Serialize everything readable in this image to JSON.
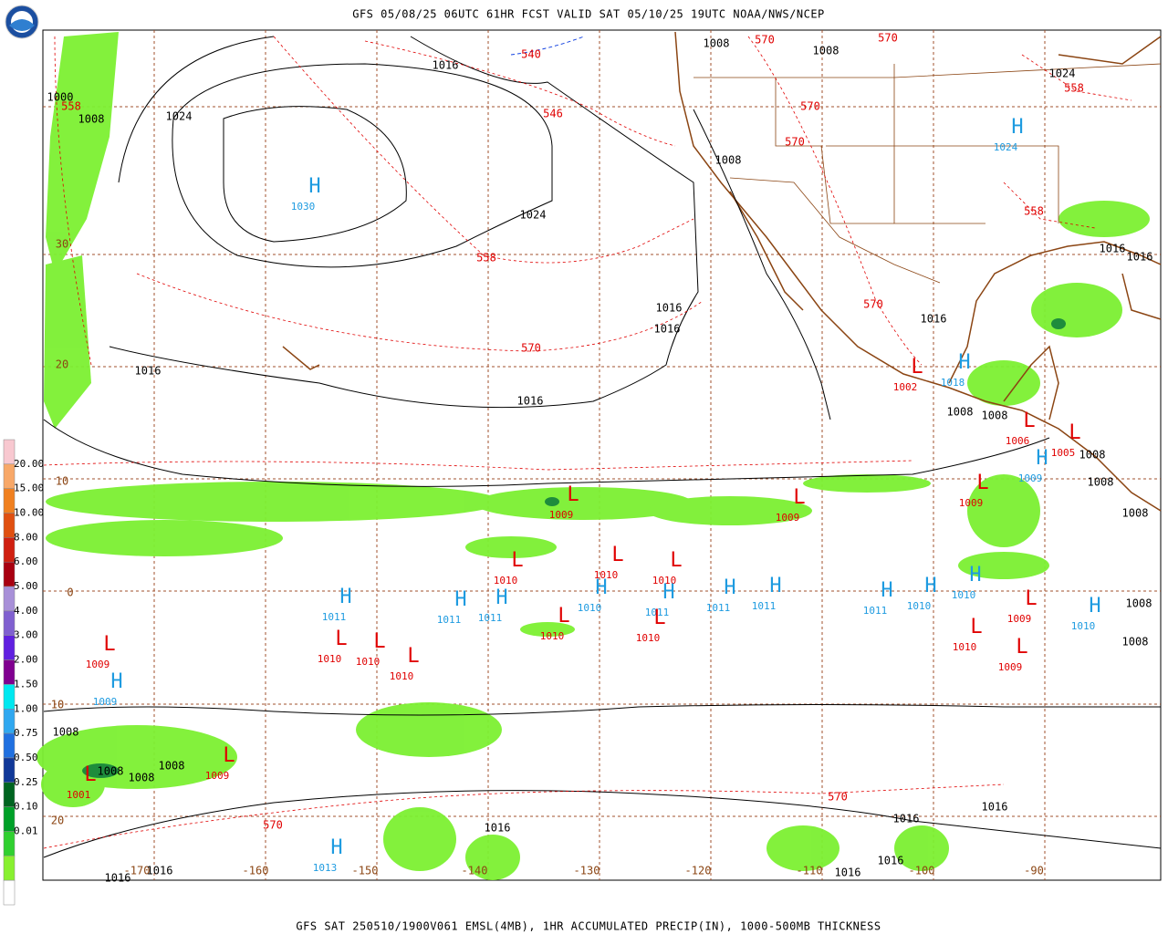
{
  "header": {
    "title": "GFS 05/08/25 06UTC 61HR FCST VALID SAT 05/10/25 19UTC NOAA/NWS/NCEP"
  },
  "footer": {
    "caption": "GFS SAT 250510/1900V061 EMSL(4MB), 1HR ACCUMULATED PRECIP(IN), 1000-500MB THICKNESS"
  },
  "legend": {
    "labels": [
      "20.00",
      "15.00",
      "10.00",
      "8.00",
      "6.00",
      "5.00",
      "4.00",
      "3.00",
      "2.00",
      "1.50",
      "1.00",
      "0.75",
      "0.50",
      "0.25",
      "0.10",
      "0.01"
    ]
  },
  "grid": {
    "lat_labels": [
      "30",
      "20",
      "10",
      "0",
      "10",
      "20"
    ],
    "lon_labels": [
      "-170",
      "-160",
      "-150",
      "-140",
      "-130",
      "-120",
      "-110",
      "-100",
      "-90"
    ]
  },
  "pressure_centers": [
    {
      "symbol": "H",
      "value": "1030"
    },
    {
      "symbol": "H",
      "value": "1024"
    },
    {
      "symbol": "H",
      "value": "1018"
    },
    {
      "symbol": "L",
      "value": "1002"
    },
    {
      "symbol": "L",
      "value": "1006"
    },
    {
      "symbol": "L",
      "value": "1005"
    },
    {
      "symbol": "H",
      "value": "1009"
    },
    {
      "symbol": "L",
      "value": "1009"
    },
    {
      "symbol": "L",
      "value": "1009"
    },
    {
      "symbol": "L",
      "value": "1009"
    },
    {
      "symbol": "L",
      "value": "1010"
    },
    {
      "symbol": "L",
      "value": "1010"
    },
    {
      "symbol": "L",
      "value": "1010"
    },
    {
      "symbol": "H",
      "value": "1011"
    },
    {
      "symbol": "H",
      "value": "1011"
    },
    {
      "symbol": "H",
      "value": "1011"
    },
    {
      "symbol": "H",
      "value": "1010"
    },
    {
      "symbol": "H",
      "value": "1011"
    },
    {
      "symbol": "H",
      "value": "1011"
    },
    {
      "symbol": "H",
      "value": "1011"
    },
    {
      "symbol": "H",
      "value": "1011"
    },
    {
      "symbol": "H",
      "value": "1010"
    },
    {
      "symbol": "H",
      "value": "1010"
    },
    {
      "symbol": "H",
      "value": "1010"
    },
    {
      "symbol": "L",
      "value": "1009"
    },
    {
      "symbol": "L",
      "value": "1010"
    },
    {
      "symbol": "L",
      "value": "1010"
    },
    {
      "symbol": "L",
      "value": "1010"
    },
    {
      "symbol": "L",
      "value": "1009"
    },
    {
      "symbol": "L",
      "value": "1009"
    },
    {
      "symbol": "H",
      "value": "1009"
    },
    {
      "symbol": "L",
      "value": "1010"
    },
    {
      "symbol": "L",
      "value": "1010"
    },
    {
      "symbol": "L",
      "value": "1010"
    },
    {
      "symbol": "L",
      "value": "1009"
    },
    {
      "symbol": "L",
      "value": "1001"
    },
    {
      "symbol": "H",
      "value": "1013"
    }
  ],
  "isobar_labels": [
    "1016",
    "1008",
    "1008",
    "1000",
    "1008",
    "1024",
    "1024",
    "1016",
    "1016",
    "1008",
    "1016",
    "1016",
    "1024",
    "1016",
    "1008",
    "1008",
    "1008",
    "1008",
    "1008",
    "1008",
    "1008",
    "1016",
    "1016",
    "1008",
    "1008",
    "1008",
    "1008",
    "1016",
    "1016",
    "1016",
    "1016",
    "1016",
    "1016",
    "1016"
  ],
  "thickness_labels": [
    "570",
    "570",
    "570",
    "570",
    "558",
    "558",
    "546",
    "558",
    "570",
    "570",
    "558",
    "570",
    "570",
    "540"
  ]
}
